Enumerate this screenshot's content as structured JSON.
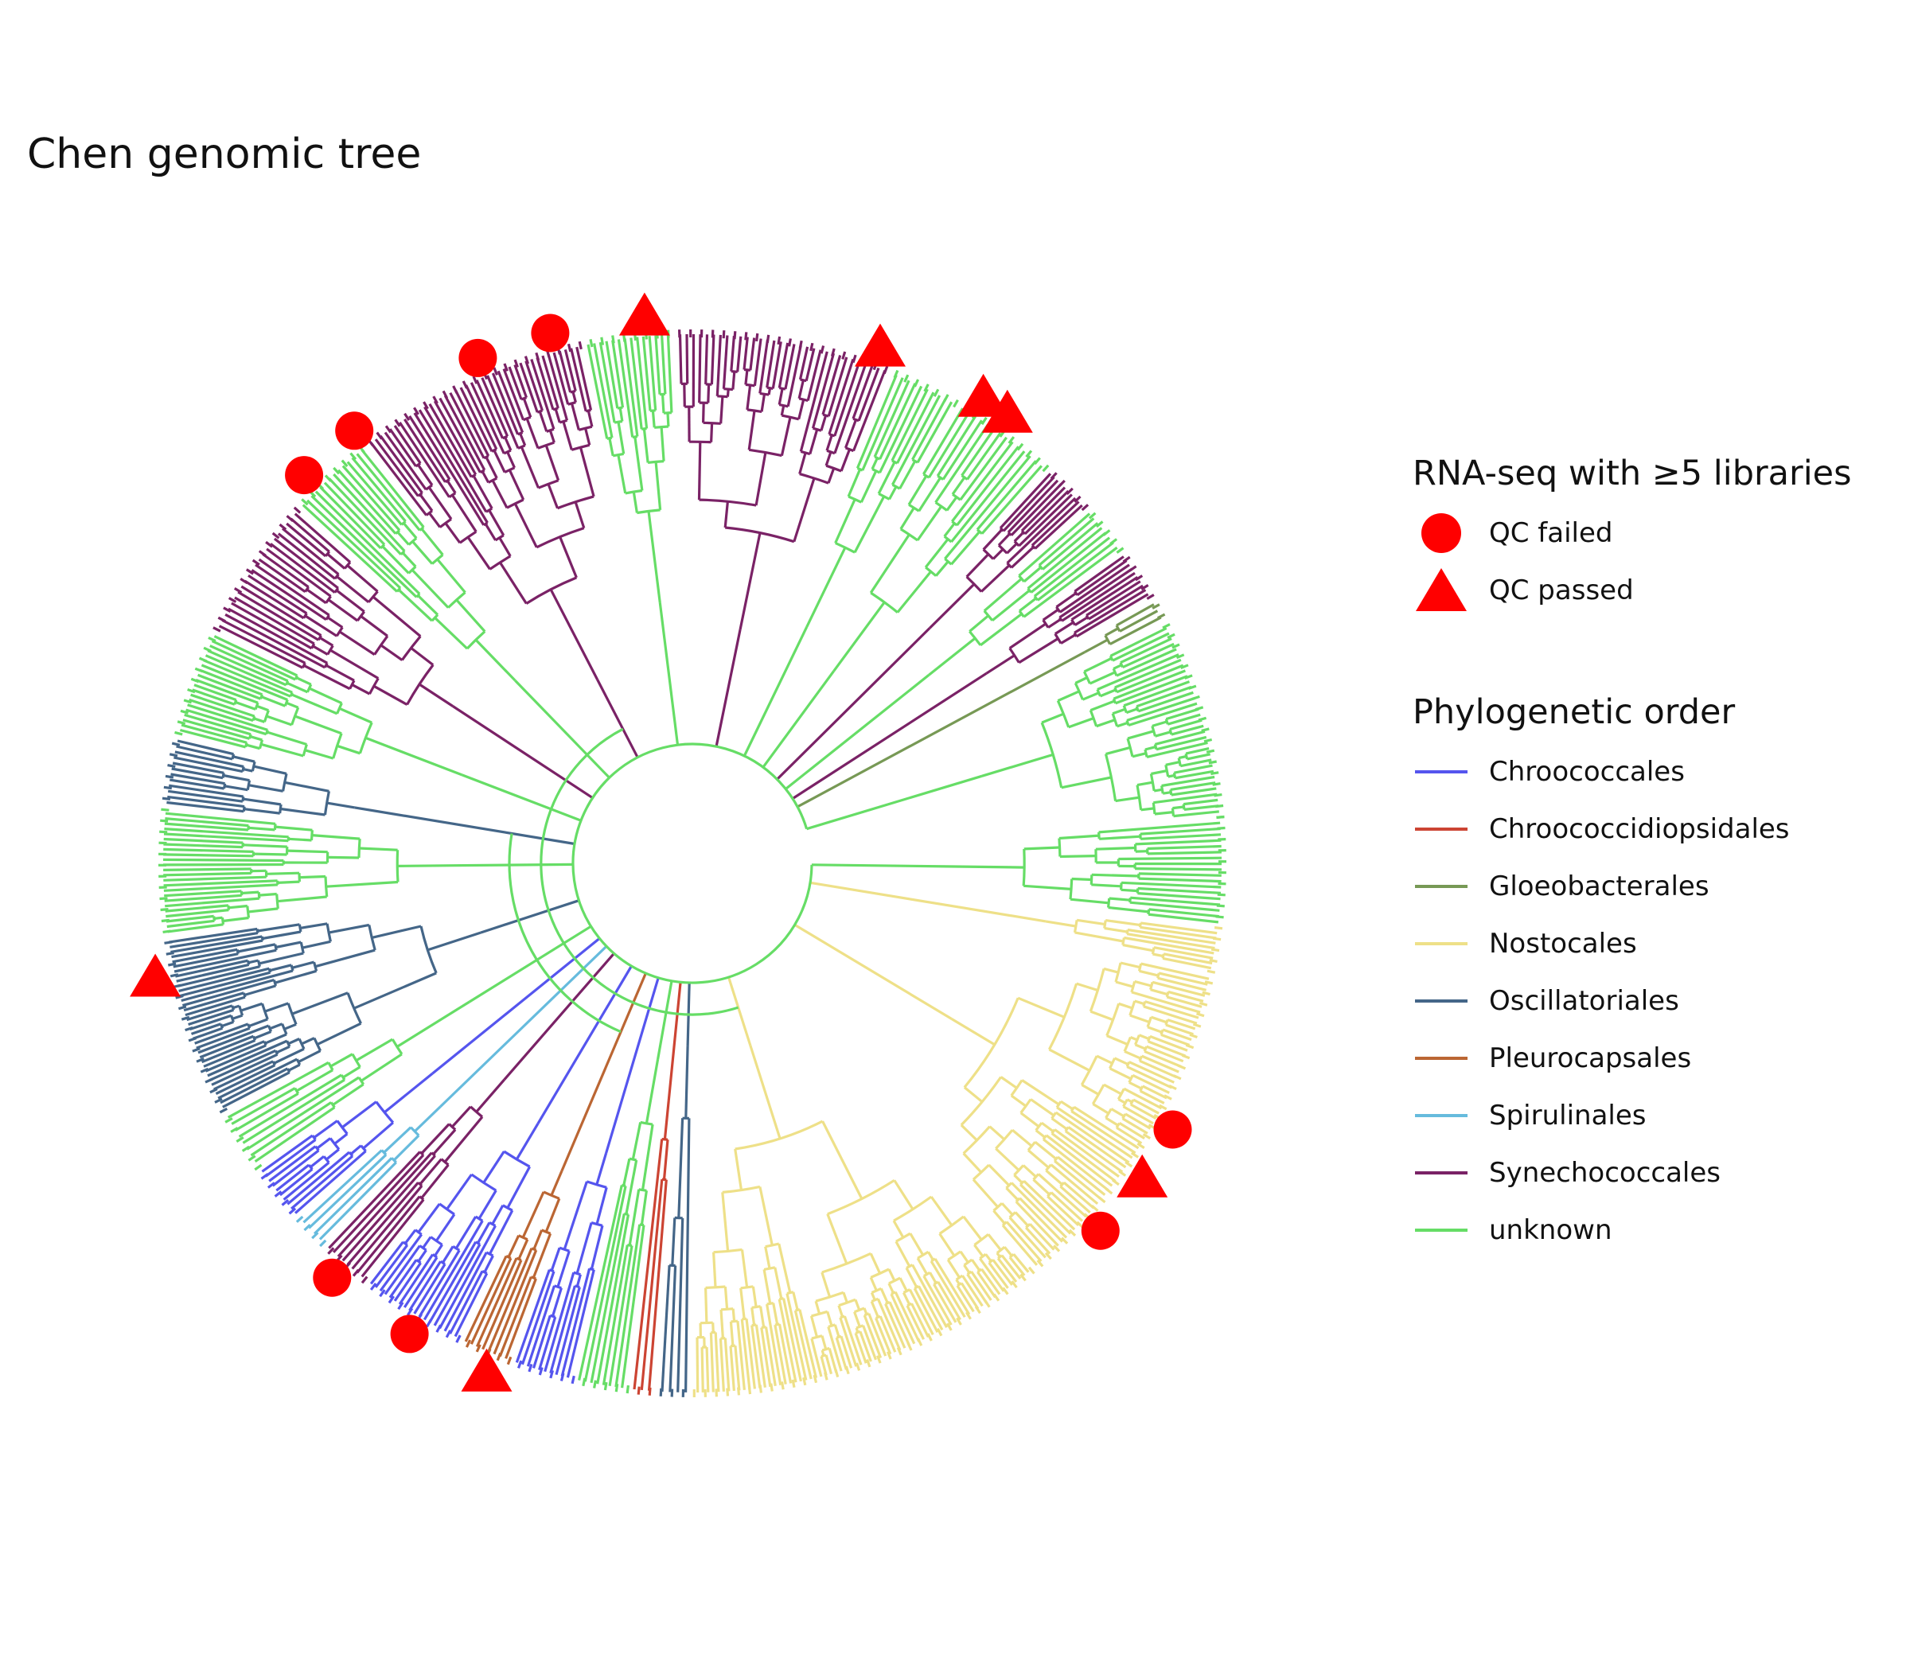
{
  "title": "Chen genomic tree",
  "legend_markers": {
    "title": "RNA-seq with ≥5 libraries",
    "items": [
      {
        "label": "QC failed",
        "shape": "circle",
        "color": "#ff0000"
      },
      {
        "label": "QC passed",
        "shape": "triangle",
        "color": "#ff0000"
      }
    ]
  },
  "legend_orders": {
    "title": "Phylogenetic order",
    "items": [
      {
        "label": "Chroococcales",
        "color": "#5555ee"
      },
      {
        "label": "Chroococcidiopsidales",
        "color": "#cc4433"
      },
      {
        "label": "Gloeobacterales",
        "color": "#779955"
      },
      {
        "label": "Nostocales",
        "color": "#eee088"
      },
      {
        "label": "Oscillatoriales",
        "color": "#446688"
      },
      {
        "label": "Pleurocapsales",
        "color": "#bb6633"
      },
      {
        "label": "Spirulinales",
        "color": "#66bbdd"
      },
      {
        "label": "Synechococcales",
        "color": "#7a2266"
      },
      {
        "label": "unknown",
        "color": "#66dd66"
      }
    ]
  }
}
